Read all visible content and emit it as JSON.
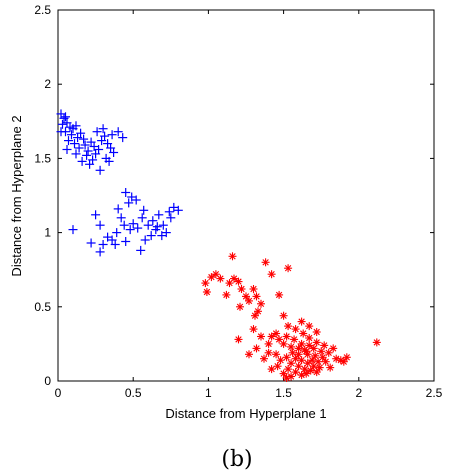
{
  "caption": "(b)",
  "chart_data": {
    "type": "scatter",
    "title": "",
    "xlabel": "Distance from Hyperplane 1",
    "ylabel": "Distance from Hyperplane 2",
    "xlim": [
      0,
      2.5
    ],
    "ylim": [
      0,
      2.5
    ],
    "xticks": [
      "0",
      "0.5",
      "1",
      "1.5",
      "2",
      "2.5"
    ],
    "yticks": [
      "0",
      "0.5",
      "1",
      "1.5",
      "2",
      "2.5"
    ],
    "grid": false,
    "legend": "none",
    "series": [
      {
        "marker": "plus",
        "color": "#0000ff",
        "points": [
          [
            0.02,
            1.8
          ],
          [
            0.04,
            1.77
          ],
          [
            0.03,
            1.73
          ],
          [
            0.06,
            1.74
          ],
          [
            0.08,
            1.71
          ],
          [
            0.05,
            1.68
          ],
          [
            0.1,
            1.7
          ],
          [
            0.12,
            1.72
          ],
          [
            0.09,
            1.66
          ],
          [
            0.13,
            1.64
          ],
          [
            0.07,
            1.62
          ],
          [
            0.11,
            1.6
          ],
          [
            0.15,
            1.67
          ],
          [
            0.17,
            1.63
          ],
          [
            0.14,
            1.57
          ],
          [
            0.18,
            1.59
          ],
          [
            0.2,
            1.55
          ],
          [
            0.22,
            1.61
          ],
          [
            0.24,
            1.58
          ],
          [
            0.19,
            1.52
          ],
          [
            0.23,
            1.49
          ],
          [
            0.25,
            1.53
          ],
          [
            0.27,
            1.56
          ],
          [
            0.29,
            1.62
          ],
          [
            0.31,
            1.65
          ],
          [
            0.33,
            1.6
          ],
          [
            0.35,
            1.57
          ],
          [
            0.36,
            1.66
          ],
          [
            0.3,
            1.7
          ],
          [
            0.26,
            1.68
          ],
          [
            0.21,
            1.46
          ],
          [
            0.28,
            1.42
          ],
          [
            0.32,
            1.5
          ],
          [
            0.37,
            1.54
          ],
          [
            0.4,
            1.68
          ],
          [
            0.43,
            1.64
          ],
          [
            0.16,
            1.48
          ],
          [
            0.12,
            1.53
          ],
          [
            0.06,
            1.56
          ],
          [
            0.34,
            1.48
          ],
          [
            0.02,
            1.68
          ],
          [
            0.05,
            1.78
          ],
          [
            0.45,
            1.27
          ],
          [
            0.47,
            1.2
          ],
          [
            0.49,
            1.24
          ],
          [
            0.52,
            1.22
          ],
          [
            0.56,
            1.1
          ],
          [
            0.6,
            1.05
          ],
          [
            0.57,
            1.15
          ],
          [
            0.63,
            1.08
          ],
          [
            0.67,
            1.12
          ],
          [
            0.7,
            1.05
          ],
          [
            0.72,
            1.0
          ],
          [
            0.69,
            0.98
          ],
          [
            0.74,
            1.14
          ],
          [
            0.77,
            1.17
          ],
          [
            0.8,
            1.15
          ],
          [
            0.75,
            1.1
          ],
          [
            0.62,
            0.98
          ],
          [
            0.65,
            1.02
          ],
          [
            0.53,
            1.03
          ],
          [
            0.5,
            1.06
          ],
          [
            0.44,
            1.05
          ],
          [
            0.42,
            1.1
          ],
          [
            0.39,
            1.0
          ],
          [
            0.36,
            0.95
          ],
          [
            0.33,
            0.97
          ],
          [
            0.3,
            0.92
          ],
          [
            0.28,
            1.05
          ],
          [
            0.25,
            1.12
          ],
          [
            0.22,
            0.93
          ],
          [
            0.28,
            0.87
          ],
          [
            0.38,
            0.92
          ],
          [
            0.45,
            0.94
          ],
          [
            0.55,
            0.88
          ],
          [
            0.58,
            0.95
          ],
          [
            0.4,
            1.16
          ],
          [
            0.66,
            1.04
          ],
          [
            0.1,
            1.02
          ],
          [
            0.48,
            1.02
          ]
        ]
      },
      {
        "marker": "star",
        "color": "#ff0000",
        "points": [
          [
            0.98,
            0.66
          ],
          [
            1.02,
            0.7
          ],
          [
            1.05,
            0.72
          ],
          [
            1.08,
            0.69
          ],
          [
            0.99,
            0.6
          ],
          [
            1.14,
            0.66
          ],
          [
            1.17,
            0.69
          ],
          [
            1.2,
            0.67
          ],
          [
            1.12,
            0.58
          ],
          [
            1.22,
            0.62
          ],
          [
            1.25,
            0.57
          ],
          [
            1.3,
            0.62
          ],
          [
            1.32,
            0.57
          ],
          [
            1.27,
            0.54
          ],
          [
            1.35,
            0.52
          ],
          [
            1.33,
            0.47
          ],
          [
            1.31,
            0.44
          ],
          [
            1.16,
            0.84
          ],
          [
            1.38,
            0.8
          ],
          [
            1.42,
            0.72
          ],
          [
            1.53,
            0.76
          ],
          [
            1.47,
            0.58
          ],
          [
            1.21,
            0.5
          ],
          [
            1.5,
            0.44
          ],
          [
            1.53,
            0.37
          ],
          [
            1.58,
            0.35
          ],
          [
            1.62,
            0.4
          ],
          [
            1.67,
            0.37
          ],
          [
            1.72,
            0.33
          ],
          [
            1.2,
            0.28
          ],
          [
            1.3,
            0.35
          ],
          [
            1.35,
            0.3
          ],
          [
            1.4,
            0.25
          ],
          [
            1.42,
            0.3
          ],
          [
            1.45,
            0.32
          ],
          [
            1.47,
            0.28
          ],
          [
            1.5,
            0.25
          ],
          [
            1.52,
            0.3
          ],
          [
            1.55,
            0.23
          ],
          [
            1.57,
            0.28
          ],
          [
            1.6,
            0.22
          ],
          [
            1.62,
            0.25
          ],
          [
            1.65,
            0.2
          ],
          [
            1.67,
            0.24
          ],
          [
            1.7,
            0.22
          ],
          [
            1.72,
            0.26
          ],
          [
            1.75,
            0.2
          ],
          [
            1.77,
            0.24
          ],
          [
            1.8,
            0.19
          ],
          [
            1.83,
            0.22
          ],
          [
            1.85,
            0.15
          ],
          [
            1.88,
            0.14
          ],
          [
            1.9,
            0.13
          ],
          [
            1.92,
            0.16
          ],
          [
            2.12,
            0.26
          ],
          [
            1.27,
            0.18
          ],
          [
            1.32,
            0.22
          ],
          [
            1.37,
            0.15
          ],
          [
            1.4,
            0.19
          ],
          [
            1.45,
            0.18
          ],
          [
            1.48,
            0.14
          ],
          [
            1.52,
            0.16
          ],
          [
            1.55,
            0.12
          ],
          [
            1.58,
            0.15
          ],
          [
            1.6,
            0.1
          ],
          [
            1.62,
            0.14
          ],
          [
            1.64,
            0.08
          ],
          [
            1.66,
            0.12
          ],
          [
            1.68,
            0.07
          ],
          [
            1.7,
            0.1
          ],
          [
            1.72,
            0.06
          ],
          [
            1.74,
            0.09
          ],
          [
            1.65,
            0.05
          ],
          [
            1.62,
            0.04
          ],
          [
            1.58,
            0.06
          ],
          [
            1.55,
            0.03
          ],
          [
            1.52,
            0.02
          ],
          [
            1.5,
            0.05
          ],
          [
            1.69,
            0.14
          ],
          [
            1.71,
            0.17
          ],
          [
            1.73,
            0.13
          ],
          [
            1.66,
            0.18
          ],
          [
            1.64,
            0.21
          ],
          [
            1.6,
            0.18
          ],
          [
            1.56,
            0.19
          ],
          [
            1.53,
            0.08
          ],
          [
            1.46,
            0.1
          ],
          [
            1.42,
            0.08
          ],
          [
            1.78,
            0.13
          ],
          [
            1.76,
            0.16
          ],
          [
            1.81,
            0.09
          ],
          [
            1.67,
            0.29
          ],
          [
            1.63,
            0.32
          ]
        ]
      }
    ]
  }
}
